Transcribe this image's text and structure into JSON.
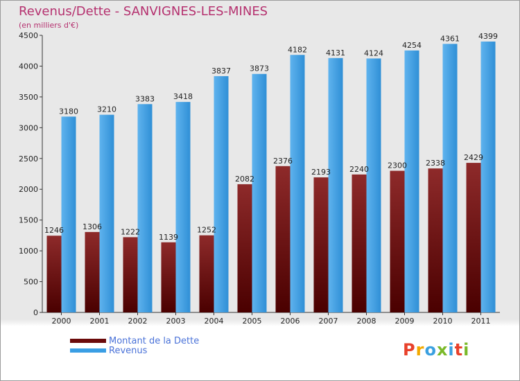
{
  "header": {
    "title": "Revenus/Dette - SANVIGNES-LES-MINES",
    "subtitle": "(en milliers d'€)"
  },
  "legend": {
    "items": [
      {
        "label": "Montant de la Dette",
        "color": "#6b0a0a"
      },
      {
        "label": "Revenus",
        "color": "#3a9ee4"
      }
    ]
  },
  "logo": {
    "text": "Proxiti",
    "colors": [
      "#e8402a",
      "#f2a900",
      "#3aa0e0",
      "#7ab929",
      "#3aa0e0",
      "#e8402a",
      "#7ab929"
    ]
  },
  "chart_data": {
    "type": "bar",
    "title": "Revenus/Dette - SANVIGNES-LES-MINES",
    "subtitle": "(en milliers d'€)",
    "categories": [
      "2000",
      "2001",
      "2002",
      "2003",
      "2004",
      "2005",
      "2006",
      "2007",
      "2008",
      "2009",
      "2010",
      "2011"
    ],
    "series": [
      {
        "name": "Montant de la Dette",
        "color": "#7d1c1c",
        "values": [
          1246,
          1306,
          1222,
          1139,
          1252,
          2082,
          2376,
          2193,
          2240,
          2300,
          2338,
          2429
        ]
      },
      {
        "name": "Revenus",
        "color": "#3d9fe2",
        "values": [
          3180,
          3210,
          3383,
          3418,
          3837,
          3873,
          4182,
          4131,
          4124,
          4254,
          4361,
          4399
        ]
      }
    ],
    "ylim": [
      0,
      4500
    ],
    "yticks": [
      0,
      500,
      1000,
      1500,
      2000,
      2500,
      3000,
      3500,
      4000,
      4500
    ],
    "grid": false,
    "legend_position": "bottom-left"
  }
}
